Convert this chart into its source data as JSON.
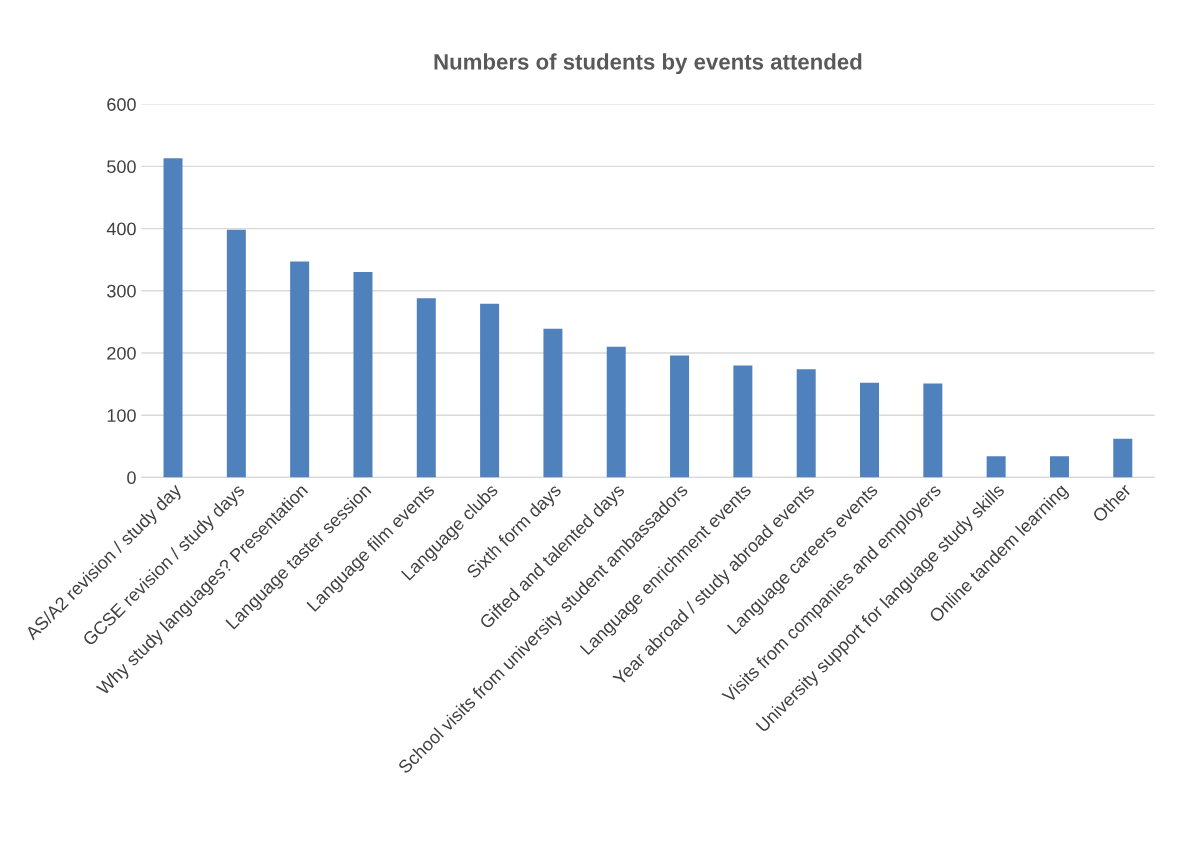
{
  "chart_data": {
    "type": "bar",
    "title": "Numbers of students by events attended",
    "categories": [
      "AS/A2 revision / study day",
      "GCSE revision / study days",
      "Why study languages? Presentation",
      "Language taster session",
      "Language film events",
      "Language clubs",
      "Sixth form days",
      "Gifted and talented days",
      "School visits from university student ambassadors",
      "Language enrichment events",
      "Year abroad / study abroad events",
      "Language careers events",
      "Visits from companies and employers",
      "University support for language study skills",
      "Online tandem learning",
      "Other"
    ],
    "values": [
      513,
      398,
      347,
      330,
      288,
      279,
      239,
      210,
      196,
      180,
      174,
      152,
      151,
      34,
      34,
      62
    ],
    "color": "#4f81bd",
    "ylim": [
      0,
      600
    ],
    "yticks": [
      0,
      100,
      200,
      300,
      400,
      500,
      600
    ],
    "grid": "y"
  }
}
